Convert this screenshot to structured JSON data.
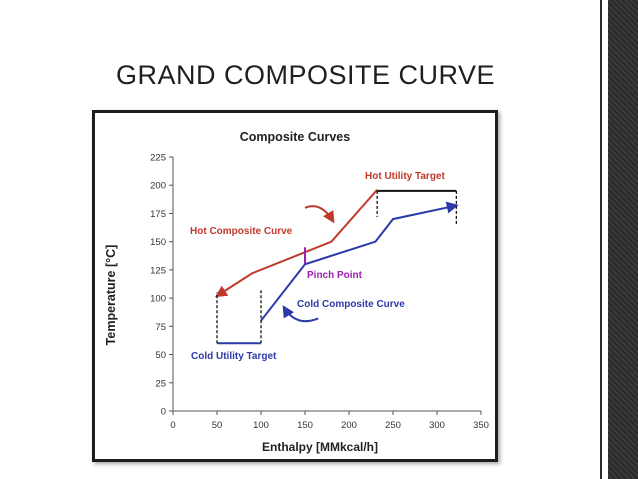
{
  "slide": {
    "title": "GRAND COMPOSITE CURVE"
  },
  "colors": {
    "hot": "#c0392b",
    "cold": "#2b3aa8",
    "pinch": "#9b1fb3",
    "frame": "#1e1e1e"
  },
  "chart_data": {
    "type": "line",
    "title": "Composite Curves",
    "xlabel": "Enthalpy [MMkcal/h]",
    "ylabel": "Temperature [°C]",
    "xlim": [
      0,
      350
    ],
    "ylim": [
      0,
      225
    ],
    "x_ticks": [
      "0",
      "50",
      "100",
      "150",
      "200",
      "250",
      "300",
      "350"
    ],
    "y_ticks": [
      "0",
      "25",
      "50",
      "75",
      "100",
      "125",
      "150",
      "175",
      "200",
      "225"
    ],
    "grid": false,
    "series": [
      {
        "name": "Hot Composite Curve",
        "color": "#c0392b",
        "points": [
          [
            50,
            102
          ],
          [
            90,
            122
          ],
          [
            180,
            150
          ],
          [
            230,
            195
          ],
          [
            255,
            195
          ],
          [
            320,
            195
          ]
        ],
        "plotted": [
          [
            50,
            102
          ],
          [
            90,
            122
          ],
          [
            180,
            150
          ],
          [
            232,
            196
          ]
        ]
      },
      {
        "name": "Cold Composite Curve",
        "color": "#2b3aa8",
        "points": [
          [
            100,
            80
          ],
          [
            150,
            130
          ],
          [
            230,
            150
          ],
          [
            250,
            170
          ],
          [
            322,
            182
          ]
        ]
      }
    ],
    "annotations": {
      "hot_utility_target": "Hot Utility Target",
      "cold_utility_target": "Cold Utility Target",
      "pinch_point": "Pinch Point",
      "hot_curve_label": "Hot Composite Curve",
      "cold_curve_label": "Cold Composite Curve"
    },
    "hot_utility": {
      "x_start": 232,
      "x_end": 322,
      "y": 195
    },
    "cold_utility": {
      "x_start": 50,
      "x_end": 100,
      "y": 60
    },
    "pinch": {
      "x": 150,
      "y_low": 130,
      "y_high": 145
    }
  }
}
